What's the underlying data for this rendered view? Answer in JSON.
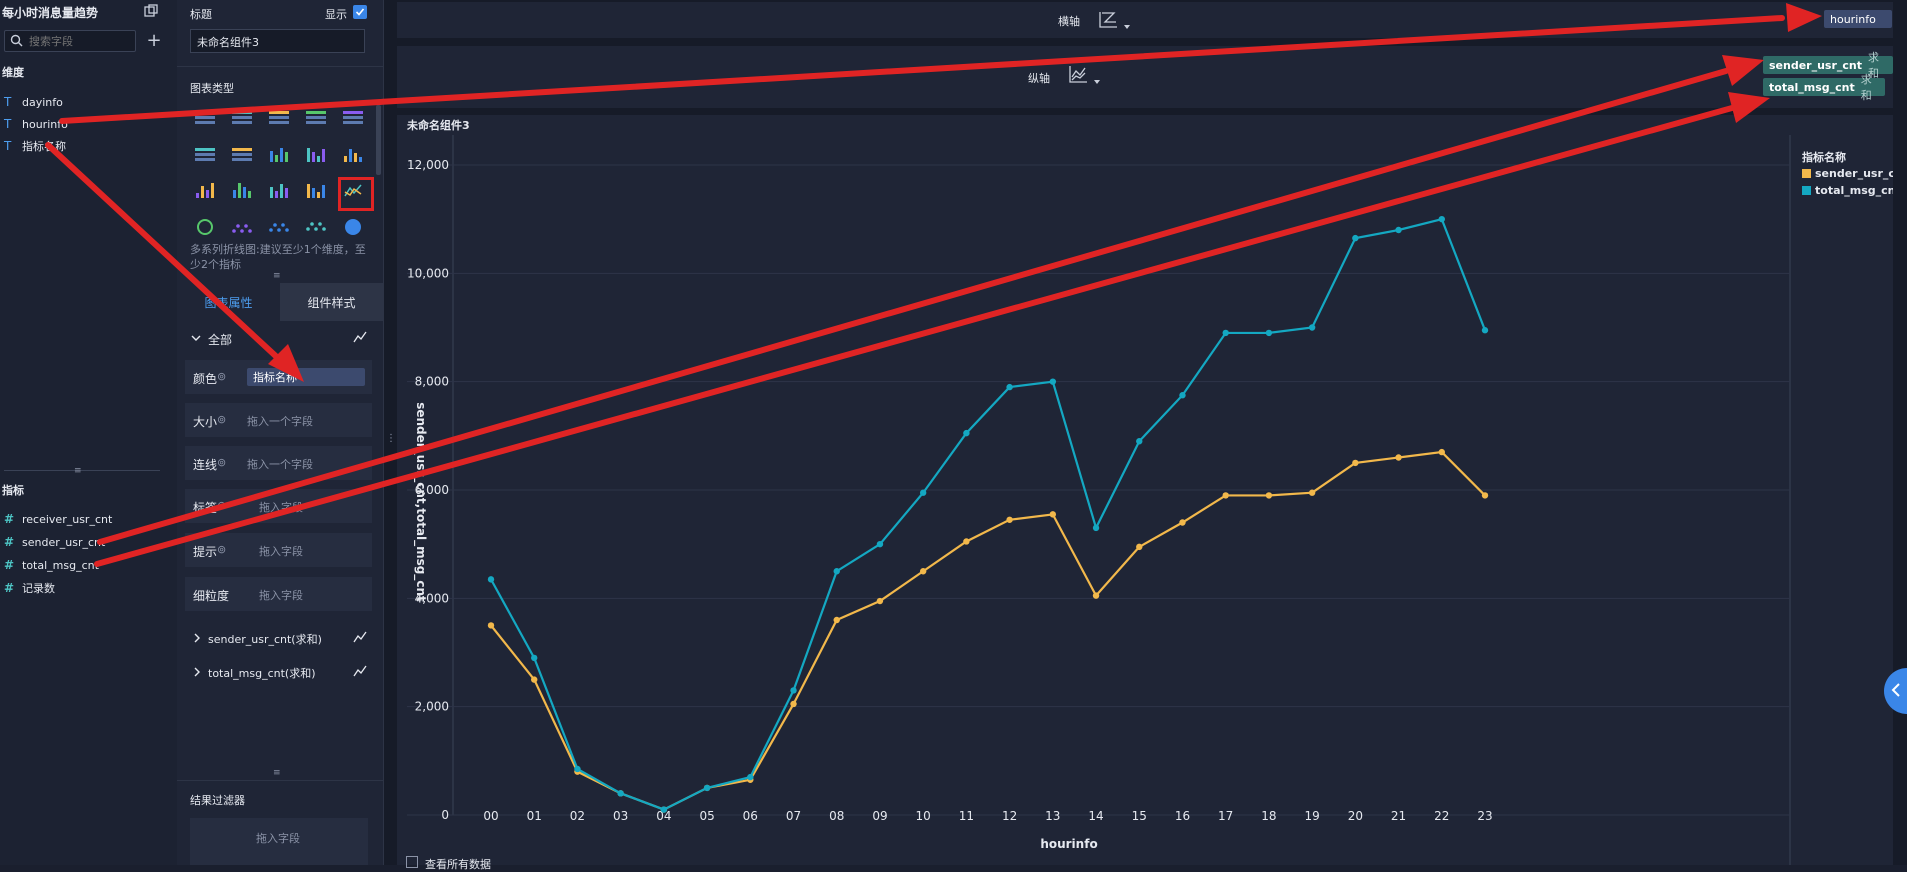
{
  "fields_panel": {
    "title": "每小时消息量趋势",
    "search_placeholder": "搜索字段",
    "dimensions_label": "维度",
    "dimensions": [
      "dayinfo",
      "hourinfo",
      "指标名称"
    ],
    "metrics_label": "指标",
    "metrics": [
      "receiver_usr_cnt",
      "sender_usr_cnt",
      "total_msg_cnt",
      "记录数"
    ]
  },
  "props_panel": {
    "title_label": "标题",
    "show_label": "显示",
    "title_value": "未命名组件3",
    "chart_type_label": "图表类型",
    "chart_type_hint": "多系列折线图:建议至少1个维度，至少2个指标",
    "tabs": [
      "图表属性",
      "组件样式"
    ],
    "all_label": "全部",
    "rows": [
      {
        "label": "颜色",
        "value": "指标名称"
      },
      {
        "label": "大小",
        "value": "拖入一个字段"
      },
      {
        "label": "连线",
        "value": "拖入一个字段"
      },
      {
        "label": "标签",
        "value": "拖入字段"
      },
      {
        "label": "提示",
        "value": "拖入字段"
      },
      {
        "label": "细粒度",
        "value": "拖入字段"
      }
    ],
    "series_rows": [
      "sender_usr_cnt(求和)",
      "total_msg_cnt(求和)"
    ],
    "filter_label": "结果过滤器",
    "filter_drop": "拖入字段"
  },
  "axes_bar": {
    "x_label": "横轴",
    "x_pill": "hourinfo",
    "y_label": "纵轴",
    "y_pills": [
      {
        "name": "sender_usr_cnt",
        "agg": "求和"
      },
      {
        "name": "total_msg_cnt",
        "agg": "求和"
      }
    ]
  },
  "bottom": {
    "view_all_label": "查看所有数据"
  },
  "colors": {
    "sender": "#f2b84b",
    "total": "#14a8c2",
    "arrow": "#e02424",
    "accent": "#3a86e8"
  },
  "chart_data": {
    "type": "line",
    "title": "未命名组件3",
    "xlabel": "hourinfo",
    "ylabel": "sender_usr_cnt,total_msg_cnt",
    "legend_title": "指标名称",
    "legend_position": "top-right",
    "ylim": [
      0,
      12000
    ],
    "yticks": [
      "0",
      "2,000",
      "4,000",
      "6,000",
      "8,000",
      "10,000",
      "12,000"
    ],
    "categories": [
      "00",
      "01",
      "02",
      "03",
      "04",
      "05",
      "06",
      "07",
      "08",
      "09",
      "10",
      "11",
      "12",
      "13",
      "14",
      "15",
      "16",
      "17",
      "18",
      "19",
      "20",
      "21",
      "22",
      "23"
    ],
    "series": [
      {
        "name": "sender_usr_cnt",
        "color": "#f2b84b",
        "values": [
          3500,
          2500,
          800,
          400,
          100,
          500,
          650,
          2050,
          3600,
          3950,
          4500,
          5050,
          5450,
          5550,
          4050,
          4950,
          5400,
          5900,
          5900,
          5950,
          6500,
          6600,
          6700,
          5900
        ]
      },
      {
        "name": "total_msg_cnt",
        "color": "#14a8c2",
        "values": [
          4350,
          2900,
          850,
          400,
          100,
          500,
          700,
          2300,
          4500,
          5000,
          5950,
          7050,
          7900,
          8000,
          5300,
          6900,
          7750,
          8900,
          8900,
          9000,
          10650,
          10800,
          11000,
          8950
        ]
      }
    ]
  }
}
